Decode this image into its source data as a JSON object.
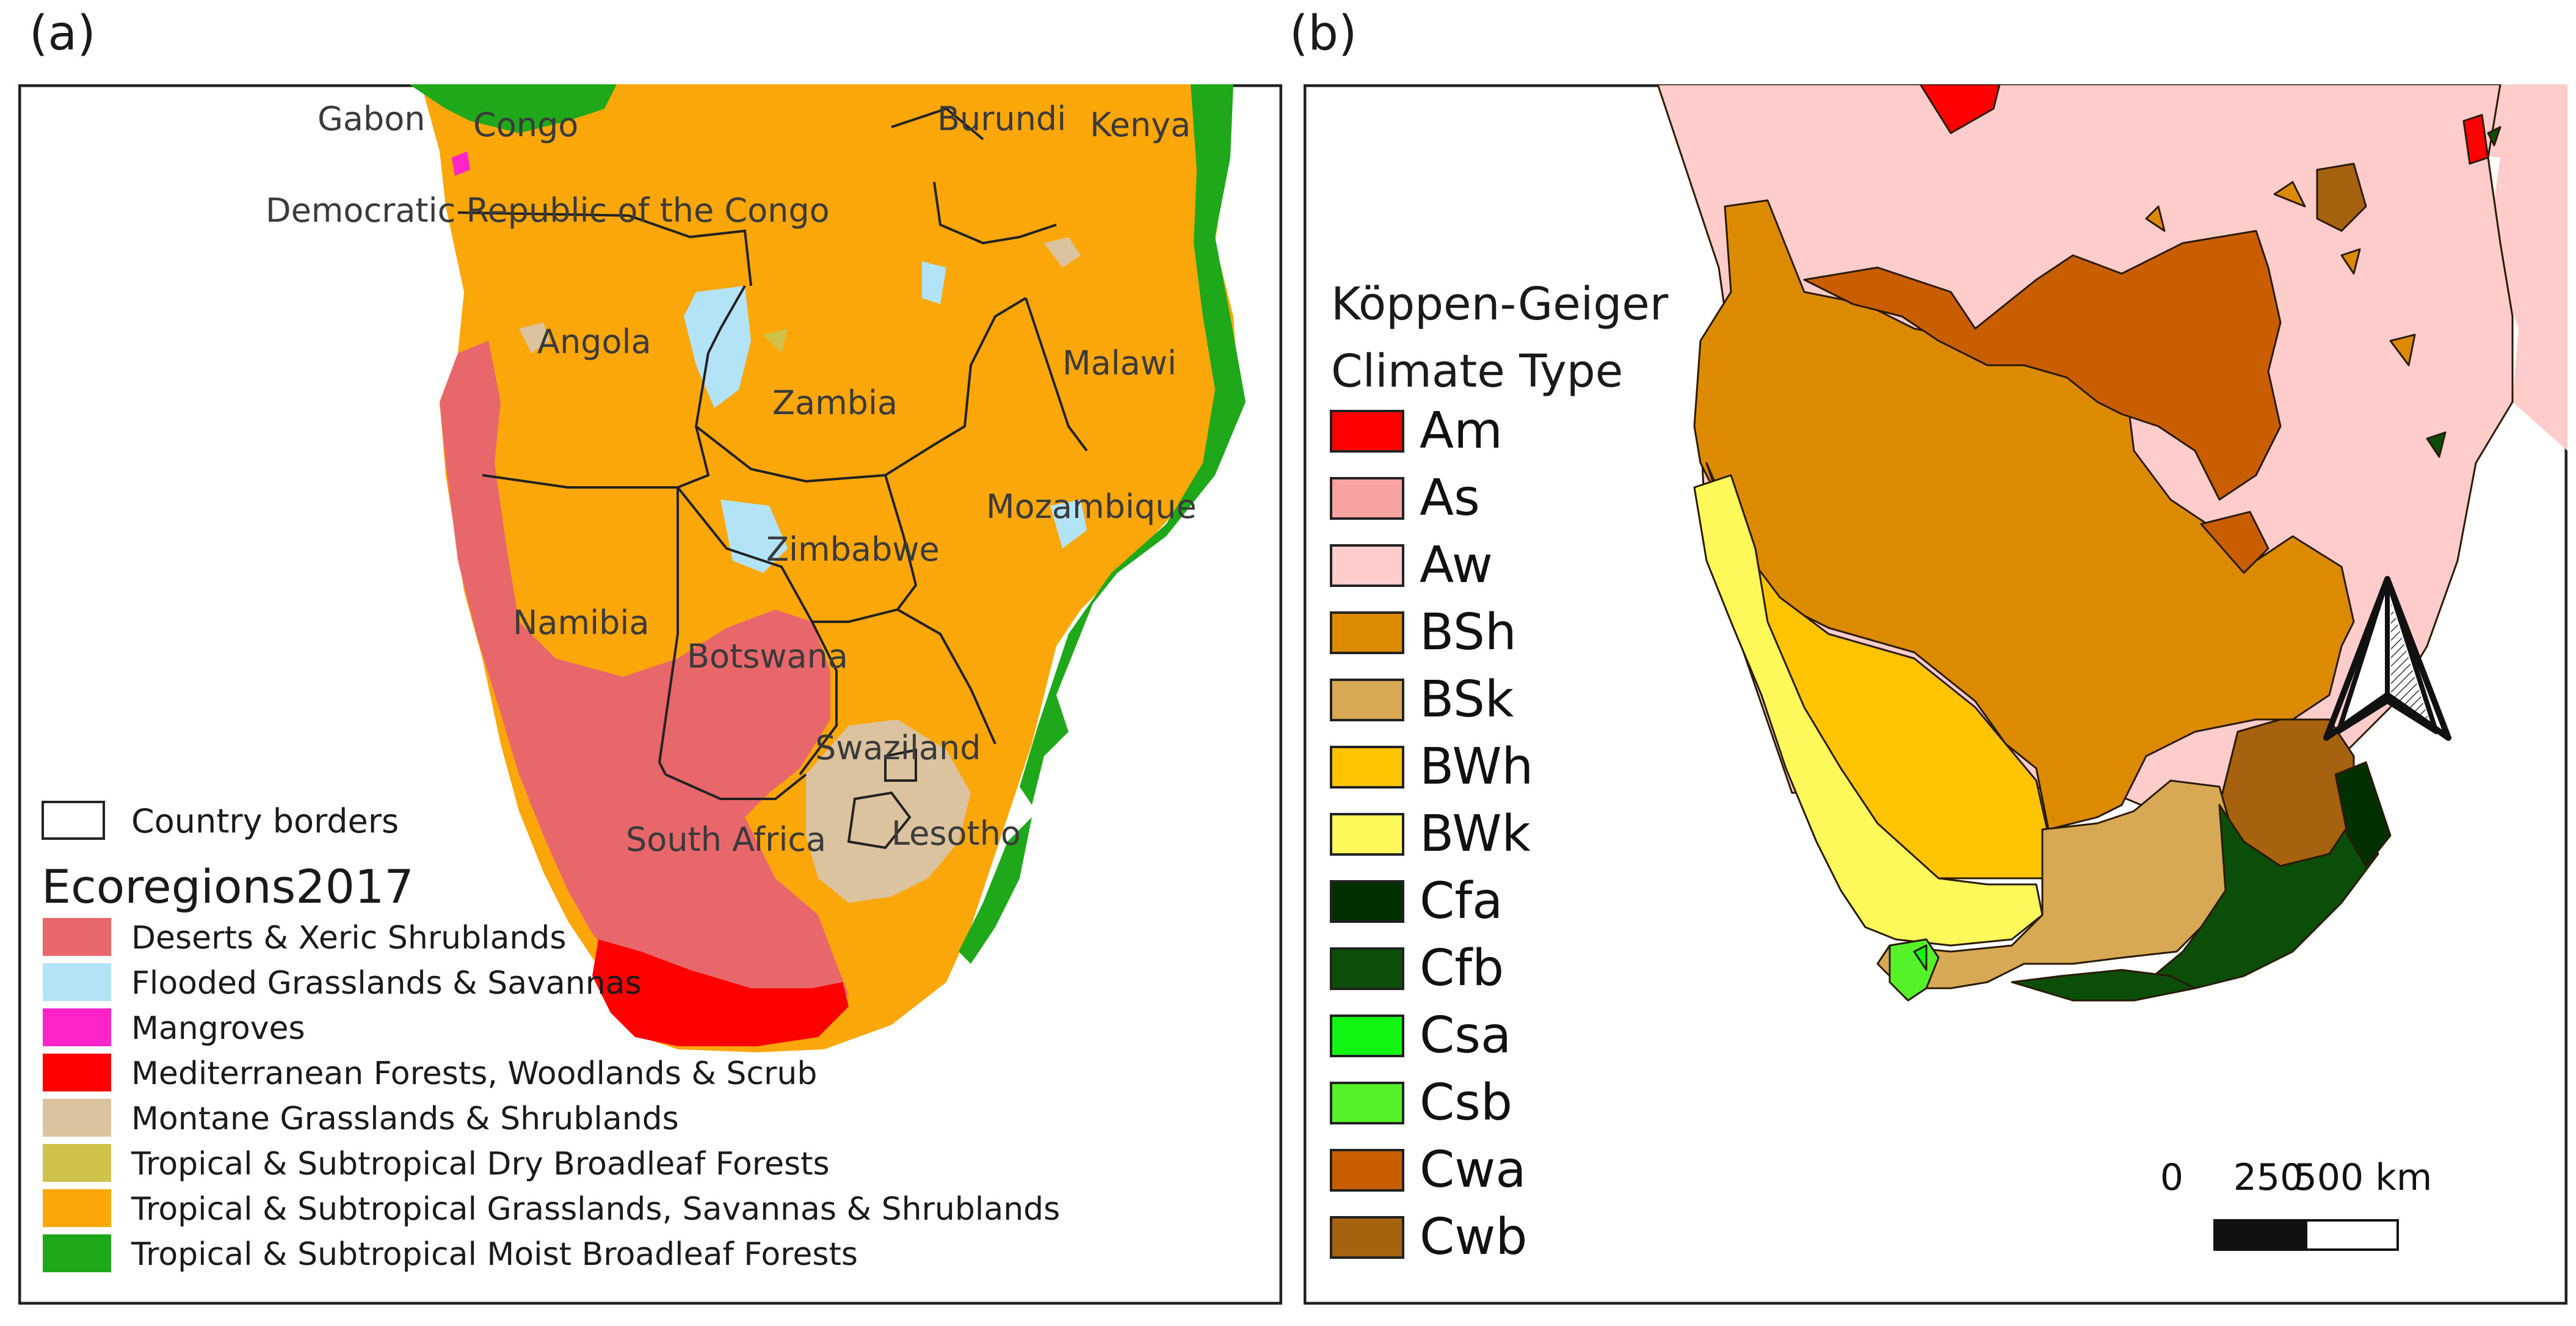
{
  "panel_a": {
    "label": "(a)",
    "countries": [
      "Gabon",
      "Congo",
      "Democratic Republic of the Congo",
      "Burundi",
      "Kenya",
      "Angola",
      "Zambia",
      "Malawi",
      "Mozambique",
      "Zimbabwe",
      "Namibia",
      "Botswana",
      "Swaziland",
      "South Africa",
      "Lesotho"
    ],
    "legend": {
      "border_label": "Country borders",
      "title": "Ecoregions2017",
      "items": [
        {
          "label": "Deserts & Xeric Shrublands",
          "color": "#e8676b"
        },
        {
          "label": "Flooded Grasslands & Savannas",
          "color": "#b3e3f7"
        },
        {
          "label": "Mangroves",
          "color": "#ff24c8"
        },
        {
          "label": "Mediterranean Forests, Woodlands & Scrub",
          "color": "#ff0000"
        },
        {
          "label": "Montane Grasslands & Shrublands",
          "color": "#dcc3a0"
        },
        {
          "label": "Tropical & Subtropical Dry Broadleaf Forests",
          "color": "#cfc24a"
        },
        {
          "label": "Tropical & Subtropical Grasslands, Savannas & Shrublands",
          "color": "#fba70a"
        },
        {
          "label": "Tropical & Subtropical Moist Broadleaf Forests",
          "color": "#1fa91a"
        }
      ]
    }
  },
  "panel_b": {
    "label": "(b)",
    "legend": {
      "title_line1": "Köppen-Geiger",
      "title_line2": "Climate Type",
      "items": [
        {
          "label": "Am",
          "color": "#ff0000"
        },
        {
          "label": "As",
          "color": "#f7a3a3"
        },
        {
          "label": "Aw",
          "color": "#ffcccc"
        },
        {
          "label": "BSh",
          "color": "#dc8a00"
        },
        {
          "label": "BSk",
          "color": "#d7a955"
        },
        {
          "label": "BWh",
          "color": "#ffc400"
        },
        {
          "label": "BWk",
          "color": "#fdf95a"
        },
        {
          "label": "Cfa",
          "color": "#003000"
        },
        {
          "label": "Cfb",
          "color": "#0a4e0a"
        },
        {
          "label": "Csa",
          "color": "#12f712"
        },
        {
          "label": "Csb",
          "color": "#55f22a"
        },
        {
          "label": "Cwa",
          "color": "#c95e00"
        },
        {
          "label": "Cwb",
          "color": "#a6620e"
        }
      ]
    },
    "scalebar": {
      "ticks": [
        "0",
        "250",
        "500 km"
      ]
    },
    "north_arrow": "north-arrow-icon"
  },
  "map_colors": {
    "ocean": "#ffffff",
    "border": "#222222"
  }
}
